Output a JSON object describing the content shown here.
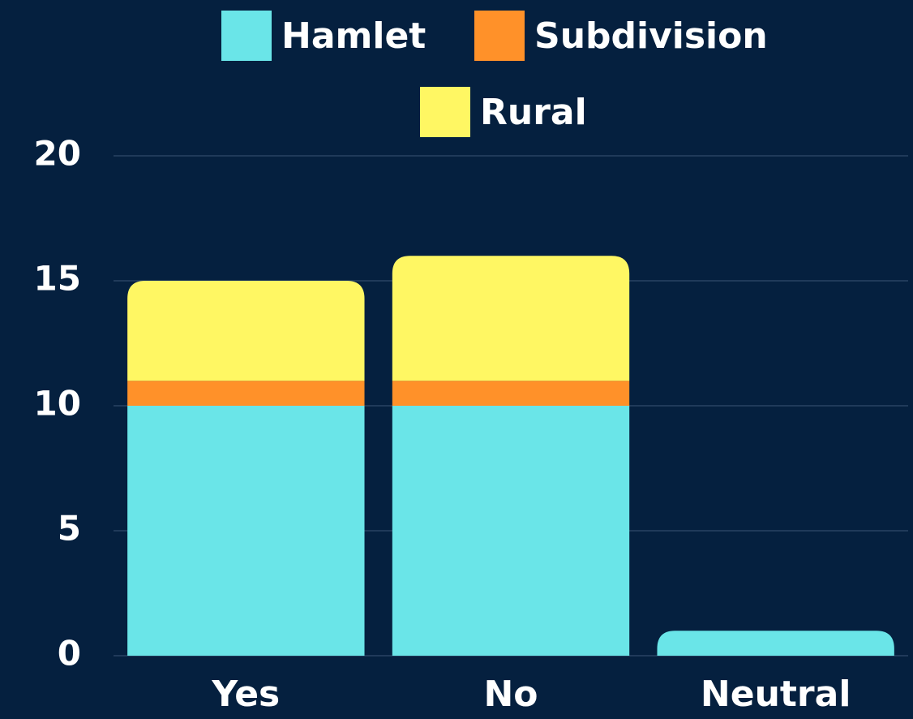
{
  "chart_data": {
    "type": "stacked_bar",
    "categories": [
      "Yes",
      "No",
      "Neutral"
    ],
    "series": [
      {
        "name": "Hamlet",
        "color": "#6ae5e8",
        "values": [
          10,
          10,
          1
        ]
      },
      {
        "name": "Subdivision",
        "color": "#ff9129",
        "values": [
          1,
          1,
          0
        ]
      },
      {
        "name": "Rural",
        "color": "#fff763",
        "values": [
          4,
          5,
          0
        ]
      }
    ],
    "ylim": [
      0,
      20
    ],
    "yticks": [
      0,
      5,
      10,
      15,
      20
    ],
    "grid": true
  }
}
